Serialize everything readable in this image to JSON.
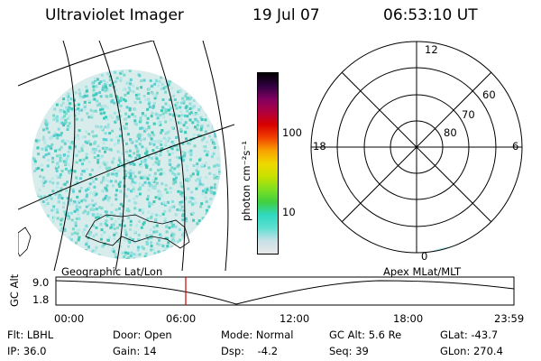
{
  "header": {
    "title": "Ultraviolet Imager",
    "date": "19 Jul 07",
    "time": "06:53:10 UT"
  },
  "colorbar": {
    "label": "photon cm⁻²s⁻¹",
    "ticks": [
      "100",
      "10"
    ],
    "stops": [
      "#e8e8e8",
      "#c8e0e8",
      "#5ce0d0",
      "#30d8c0",
      "#40d040",
      "#80e020",
      "#c8e000",
      "#f0d800",
      "#f8a000",
      "#f04000",
      "#d80000",
      "#b00040",
      "#800060",
      "#300040",
      "#000000"
    ]
  },
  "left_panel": {
    "label": "Geographic Lat/Lon"
  },
  "right_panel": {
    "label": "Apex  MLat/MLT",
    "mlt_labels": {
      "top": "12",
      "left": "18",
      "right": "6",
      "bottom": "0"
    },
    "lat_labels": [
      "60",
      "70",
      "80"
    ]
  },
  "timeline": {
    "ylabel": "GC Alt",
    "ytick_top": "9.0",
    "ytick_bottom": "1.8",
    "xticks": [
      "00:00",
      "06:00",
      "12:00",
      "18:00",
      "23:59"
    ],
    "marker_color": "#cc0000"
  },
  "info": {
    "row1": [
      "Flt: LBHL",
      "Door: Open",
      "Mode: Normal",
      "GC Alt: 5.6 Re",
      "GLat: -43.7"
    ],
    "row2": [
      "IP: 36.0",
      "Gain: 14",
      "Dsp:    -4.2",
      "Seq: 39",
      "GLon: 270.4"
    ]
  }
}
